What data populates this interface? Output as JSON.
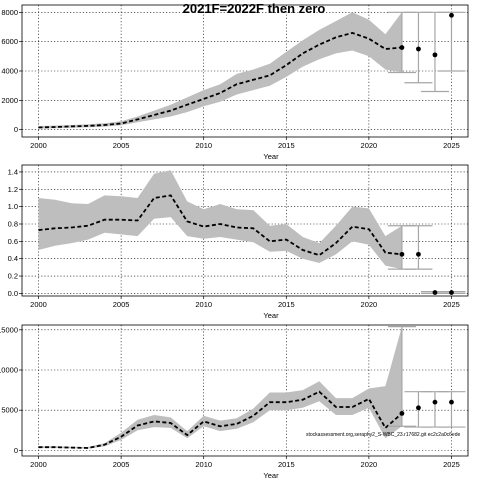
{
  "figure": {
    "title": "2021F=2022F then zero",
    "footnote": "stockassessment.org,seraphy2_S-WBC_23.r17682.git ec2c2a0c6ede"
  },
  "chart_data": [
    {
      "type": "line",
      "name": "recruitment",
      "xlim": [
        1999,
        2026
      ],
      "ylim": [
        -500,
        8500
      ],
      "xticks": [
        2000,
        2005,
        2010,
        2015,
        2020,
        2025
      ],
      "yticks": [
        0,
        2000,
        4000,
        6000,
        8000
      ],
      "ytick_labels": [
        "0",
        "2000",
        "4000",
        "6000",
        "8000"
      ],
      "xlabel": "Year",
      "ylabel": "",
      "grid": true,
      "x": [
        2000,
        2001,
        2002,
        2003,
        2004,
        2005,
        2006,
        2007,
        2008,
        2009,
        2010,
        2011,
        2012,
        2013,
        2014,
        2015,
        2016,
        2017,
        2018,
        2019,
        2020,
        2021,
        2022
      ],
      "y": [
        150,
        180,
        220,
        260,
        320,
        420,
        700,
        1000,
        1300,
        1700,
        2100,
        2500,
        3100,
        3400,
        3700,
        4400,
        5200,
        5800,
        6300,
        6600,
        6200,
        5500,
        5600
      ],
      "lower": [
        80,
        100,
        130,
        160,
        210,
        300,
        500,
        700,
        900,
        1200,
        1600,
        1900,
        2400,
        2700,
        3000,
        3600,
        4300,
        4800,
        5200,
        5400,
        5000,
        4100,
        3900
      ],
      "upper": [
        250,
        280,
        320,
        370,
        440,
        580,
        900,
        1300,
        1700,
        2200,
        2700,
        3100,
        3800,
        4100,
        4500,
        5300,
        6100,
        6800,
        7400,
        8000,
        7500,
        6500,
        8000
      ],
      "forecast": [
        {
          "x": 2023,
          "y": 5500,
          "lower": 3200,
          "upper": 8000
        },
        {
          "x": 2024,
          "y": 5100,
          "lower": 2600,
          "upper": 8000
        },
        {
          "x": 2025,
          "y": 7800,
          "lower": 4000,
          "upper": 8000
        }
      ]
    },
    {
      "type": "line",
      "name": "fishing-mortality",
      "xlim": [
        1999,
        2026
      ],
      "ylim": [
        -0.03,
        1.48
      ],
      "xticks": [
        2000,
        2005,
        2010,
        2015,
        2020,
        2025
      ],
      "yticks": [
        0.0,
        0.2,
        0.4,
        0.6,
        0.8,
        1.0,
        1.2,
        1.4
      ],
      "ytick_labels": [
        "0.0",
        "0.2",
        "0.4",
        "0.6",
        "0.8",
        "1.0",
        "1.2",
        "1.4"
      ],
      "xlabel": "Year",
      "ylabel": "",
      "grid": true,
      "x": [
        2000,
        2001,
        2002,
        2003,
        2004,
        2005,
        2006,
        2007,
        2008,
        2009,
        2010,
        2011,
        2012,
        2013,
        2014,
        2015,
        2016,
        2017,
        2018,
        2019,
        2020,
        2021,
        2022
      ],
      "y": [
        0.73,
        0.75,
        0.76,
        0.78,
        0.85,
        0.85,
        0.84,
        1.1,
        1.13,
        0.83,
        0.77,
        0.8,
        0.76,
        0.75,
        0.6,
        0.62,
        0.5,
        0.44,
        0.58,
        0.77,
        0.74,
        0.47,
        0.45
      ],
      "lower": [
        0.5,
        0.55,
        0.58,
        0.62,
        0.7,
        0.68,
        0.66,
        0.86,
        0.88,
        0.66,
        0.63,
        0.65,
        0.62,
        0.59,
        0.48,
        0.49,
        0.4,
        0.35,
        0.45,
        0.6,
        0.56,
        0.32,
        0.28
      ],
      "upper": [
        1.1,
        1.08,
        1.04,
        1.03,
        1.13,
        1.12,
        1.1,
        1.38,
        1.42,
        1.06,
        0.97,
        1.03,
        0.97,
        0.96,
        0.78,
        0.8,
        0.65,
        0.58,
        0.78,
        1.0,
        0.98,
        0.66,
        0.78
      ],
      "forecast": [
        {
          "x": 2023,
          "y": 0.45,
          "lower": 0.28,
          "upper": 0.78
        },
        {
          "x": 2024,
          "y": 0.01,
          "lower": 0.0,
          "upper": 0.02
        },
        {
          "x": 2025,
          "y": 0.01,
          "lower": 0.0,
          "upper": 0.02
        }
      ]
    },
    {
      "type": "line",
      "name": "catch",
      "xlim": [
        1999,
        2026
      ],
      "ylim": [
        -700,
        15600
      ],
      "xticks": [
        2000,
        2005,
        2010,
        2015,
        2020,
        2025
      ],
      "yticks": [
        0,
        5000,
        10000,
        15000
      ],
      "ytick_labels": [
        "0",
        "5000",
        "10000",
        "15000"
      ],
      "xlabel": "Year",
      "ylabel": "",
      "grid": true,
      "x": [
        2000,
        2001,
        2002,
        2003,
        2004,
        2005,
        2006,
        2007,
        2008,
        2009,
        2010,
        2011,
        2012,
        2013,
        2014,
        2015,
        2016,
        2017,
        2018,
        2019,
        2020,
        2021,
        2022
      ],
      "y": [
        400,
        400,
        350,
        300,
        700,
        1700,
        3100,
        3600,
        3400,
        1900,
        3600,
        3000,
        3300,
        4300,
        6000,
        6000,
        6300,
        7300,
        5400,
        5400,
        6400,
        2800,
        4600
      ],
      "lower": [
        300,
        300,
        250,
        220,
        500,
        1300,
        2500,
        2900,
        2800,
        1500,
        3000,
        2400,
        2700,
        3500,
        5000,
        5000,
        5300,
        6100,
        4400,
        4400,
        5300,
        1500,
        3000
      ],
      "upper": [
        500,
        520,
        450,
        420,
        900,
        2200,
        3800,
        4400,
        4100,
        2400,
        4300,
        3700,
        4000,
        5200,
        7200,
        7200,
        7500,
        8600,
        6500,
        6500,
        7700,
        8000,
        15400
      ],
      "forecast": [
        {
          "x": 2023,
          "y": 5300,
          "lower": 2900,
          "upper": 7300
        },
        {
          "x": 2024,
          "y": 6000,
          "lower": 2900,
          "upper": 7300
        },
        {
          "x": 2025,
          "y": 6000,
          "lower": 2900,
          "upper": 7300
        }
      ]
    }
  ]
}
